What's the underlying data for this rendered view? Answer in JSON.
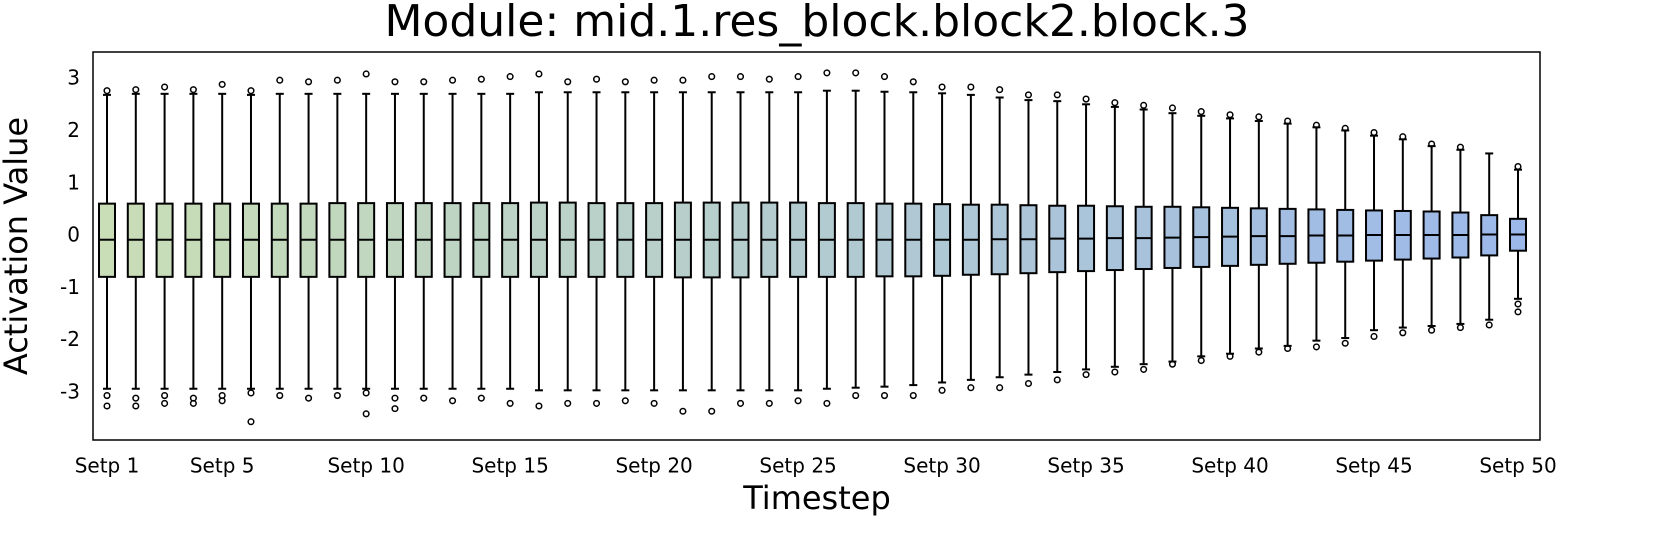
{
  "chart_data": {
    "type": "box",
    "title": "Module: mid.1.res_block.block2.block.3",
    "xlabel": "Timestep",
    "ylabel": "Activation Value",
    "categories": [
      "Setp 1",
      null,
      null,
      null,
      "Setp 5",
      null,
      null,
      null,
      null,
      "Setp 10",
      null,
      null,
      null,
      null,
      "Setp 15",
      null,
      null,
      null,
      null,
      "Setp 20",
      null,
      null,
      null,
      null,
      "Setp 25",
      null,
      null,
      null,
      null,
      "Setp 30",
      null,
      null,
      null,
      null,
      "Setp 35",
      null,
      null,
      null,
      null,
      "Setp 40",
      null,
      null,
      null,
      null,
      "Setp 45",
      null,
      null,
      null,
      null,
      "Setp 50"
    ],
    "colors": [
      "#c9deb6",
      "#9cb8ea"
    ],
    "ylim": [
      -3.9,
      3.52
    ],
    "yticks": [
      -3,
      -2,
      -1,
      0,
      1,
      2,
      3
    ],
    "grid": false,
    "boxes": [
      {
        "whislo": -2.92,
        "q1": -0.78,
        "med": -0.07,
        "q3": 0.62,
        "whishi": 2.7,
        "fliers": [
          2.78,
          -3.05,
          -3.25
        ]
      },
      {
        "whislo": -2.92,
        "q1": -0.78,
        "med": -0.07,
        "q3": 0.62,
        "whishi": 2.72,
        "fliers": [
          2.8,
          -3.1,
          -3.25
        ]
      },
      {
        "whislo": -2.92,
        "q1": -0.78,
        "med": -0.07,
        "q3": 0.62,
        "whishi": 2.72,
        "fliers": [
          2.85,
          -3.05,
          -3.2
        ]
      },
      {
        "whislo": -2.92,
        "q1": -0.78,
        "med": -0.07,
        "q3": 0.62,
        "whishi": 2.72,
        "fliers": [
          2.8,
          -3.1,
          -3.2
        ]
      },
      {
        "whislo": -2.92,
        "q1": -0.78,
        "med": -0.07,
        "q3": 0.62,
        "whishi": 2.72,
        "fliers": [
          2.9,
          -3.05,
          -3.15
        ]
      },
      {
        "whislo": -2.92,
        "q1": -0.78,
        "med": -0.07,
        "q3": 0.62,
        "whishi": 2.7,
        "fliers": [
          2.78,
          -3.0,
          -3.55
        ]
      },
      {
        "whislo": -2.92,
        "q1": -0.78,
        "med": -0.07,
        "q3": 0.62,
        "whishi": 2.72,
        "fliers": [
          2.98,
          -3.05
        ]
      },
      {
        "whislo": -2.92,
        "q1": -0.78,
        "med": -0.07,
        "q3": 0.62,
        "whishi": 2.72,
        "fliers": [
          2.95,
          -3.1
        ]
      },
      {
        "whislo": -2.92,
        "q1": -0.78,
        "med": -0.07,
        "q3": 0.63,
        "whishi": 2.72,
        "fliers": [
          2.98,
          -3.05
        ]
      },
      {
        "whislo": -2.92,
        "q1": -0.78,
        "med": -0.07,
        "q3": 0.63,
        "whishi": 2.72,
        "fliers": [
          3.1,
          -3.0,
          -3.4
        ]
      },
      {
        "whislo": -2.92,
        "q1": -0.78,
        "med": -0.07,
        "q3": 0.63,
        "whishi": 2.72,
        "fliers": [
          2.95,
          -3.1,
          -3.3
        ]
      },
      {
        "whislo": -2.92,
        "q1": -0.78,
        "med": -0.07,
        "q3": 0.63,
        "whishi": 2.72,
        "fliers": [
          2.95,
          -3.1
        ]
      },
      {
        "whislo": -2.92,
        "q1": -0.78,
        "med": -0.07,
        "q3": 0.63,
        "whishi": 2.72,
        "fliers": [
          2.98,
          -3.15
        ]
      },
      {
        "whislo": -2.92,
        "q1": -0.78,
        "med": -0.07,
        "q3": 0.63,
        "whishi": 2.72,
        "fliers": [
          3.0,
          -3.1
        ]
      },
      {
        "whislo": -2.92,
        "q1": -0.78,
        "med": -0.07,
        "q3": 0.63,
        "whishi": 2.72,
        "fliers": [
          3.05,
          -3.2
        ]
      },
      {
        "whislo": -2.95,
        "q1": -0.78,
        "med": -0.07,
        "q3": 0.64,
        "whishi": 2.75,
        "fliers": [
          3.1,
          -3.25
        ]
      },
      {
        "whislo": -2.95,
        "q1": -0.78,
        "med": -0.07,
        "q3": 0.64,
        "whishi": 2.75,
        "fliers": [
          2.95,
          -3.2
        ]
      },
      {
        "whislo": -2.95,
        "q1": -0.78,
        "med": -0.07,
        "q3": 0.63,
        "whishi": 2.75,
        "fliers": [
          3.0,
          -3.2
        ]
      },
      {
        "whislo": -2.95,
        "q1": -0.78,
        "med": -0.07,
        "q3": 0.63,
        "whishi": 2.75,
        "fliers": [
          2.95,
          -3.15
        ]
      },
      {
        "whislo": -2.95,
        "q1": -0.78,
        "med": -0.07,
        "q3": 0.63,
        "whishi": 2.75,
        "fliers": [
          2.98,
          -3.2
        ]
      },
      {
        "whislo": -2.95,
        "q1": -0.79,
        "med": -0.07,
        "q3": 0.64,
        "whishi": 2.75,
        "fliers": [
          2.98,
          -3.35
        ]
      },
      {
        "whislo": -2.95,
        "q1": -0.79,
        "med": -0.07,
        "q3": 0.64,
        "whishi": 2.75,
        "fliers": [
          3.05,
          -3.35
        ]
      },
      {
        "whislo": -2.95,
        "q1": -0.79,
        "med": -0.07,
        "q3": 0.64,
        "whishi": 2.75,
        "fliers": [
          3.05,
          -3.2
        ]
      },
      {
        "whislo": -2.95,
        "q1": -0.78,
        "med": -0.07,
        "q3": 0.64,
        "whishi": 2.75,
        "fliers": [
          3.0,
          -3.2
        ]
      },
      {
        "whislo": -2.95,
        "q1": -0.78,
        "med": -0.07,
        "q3": 0.64,
        "whishi": 2.75,
        "fliers": [
          3.05,
          -3.15
        ]
      },
      {
        "whislo": -2.92,
        "q1": -0.78,
        "med": -0.07,
        "q3": 0.63,
        "whishi": 2.78,
        "fliers": [
          3.12,
          -3.2
        ]
      },
      {
        "whislo": -2.9,
        "q1": -0.78,
        "med": -0.07,
        "q3": 0.63,
        "whishi": 2.78,
        "fliers": [
          3.12,
          -3.05
        ]
      },
      {
        "whislo": -2.88,
        "q1": -0.77,
        "med": -0.07,
        "q3": 0.62,
        "whishi": 2.76,
        "fliers": [
          3.05,
          -3.05
        ]
      },
      {
        "whislo": -2.85,
        "q1": -0.77,
        "med": -0.07,
        "q3": 0.62,
        "whishi": 2.75,
        "fliers": [
          2.95,
          -3.05
        ]
      },
      {
        "whislo": -2.8,
        "q1": -0.76,
        "med": -0.07,
        "q3": 0.61,
        "whishi": 2.73,
        "fliers": [
          2.85,
          -2.95
        ]
      },
      {
        "whislo": -2.75,
        "q1": -0.74,
        "med": -0.07,
        "q3": 0.6,
        "whishi": 2.7,
        "fliers": [
          2.85,
          -2.9
        ]
      },
      {
        "whislo": -2.7,
        "q1": -0.73,
        "med": -0.06,
        "q3": 0.6,
        "whishi": 2.65,
        "fliers": [
          2.8,
          -2.9
        ]
      },
      {
        "whislo": -2.65,
        "q1": -0.71,
        "med": -0.06,
        "q3": 0.59,
        "whishi": 2.6,
        "fliers": [
          2.7,
          -2.82
        ]
      },
      {
        "whislo": -2.6,
        "q1": -0.69,
        "med": -0.05,
        "q3": 0.58,
        "whishi": 2.58,
        "fliers": [
          2.7,
          -2.75
        ]
      },
      {
        "whislo": -2.55,
        "q1": -0.67,
        "med": -0.05,
        "q3": 0.58,
        "whishi": 2.52,
        "fliers": [
          2.62,
          -2.65
        ]
      },
      {
        "whislo": -2.5,
        "q1": -0.65,
        "med": -0.04,
        "q3": 0.57,
        "whishi": 2.47,
        "fliers": [
          2.55,
          -2.6
        ]
      },
      {
        "whislo": -2.45,
        "q1": -0.63,
        "med": -0.04,
        "q3": 0.56,
        "whishi": 2.42,
        "fliers": [
          2.5,
          -2.55
        ]
      },
      {
        "whislo": -2.4,
        "q1": -0.61,
        "med": -0.03,
        "q3": 0.56,
        "whishi": 2.35,
        "fliers": [
          2.45,
          -2.45
        ]
      },
      {
        "whislo": -2.3,
        "q1": -0.59,
        "med": -0.02,
        "q3": 0.55,
        "whishi": 2.3,
        "fliers": [
          2.38,
          -2.38
        ]
      },
      {
        "whislo": -2.25,
        "q1": -0.57,
        "med": -0.01,
        "q3": 0.54,
        "whishi": 2.25,
        "fliers": [
          2.32,
          -2.3
        ]
      },
      {
        "whislo": -2.15,
        "q1": -0.55,
        "med": 0,
        "q3": 0.53,
        "whishi": 2.2,
        "fliers": [
          2.28,
          -2.22
        ]
      },
      {
        "whislo": -2.1,
        "q1": -0.53,
        "med": 0,
        "q3": 0.52,
        "whishi": 2.15,
        "fliers": [
          2.2,
          -2.15
        ]
      },
      {
        "whislo": -2.0,
        "q1": -0.51,
        "med": 0.01,
        "q3": 0.51,
        "whishi": 2.08,
        "fliers": [
          2.12,
          -2.12
        ]
      },
      {
        "whislo": -1.95,
        "q1": -0.49,
        "med": 0.01,
        "q3": 0.5,
        "whishi": 2.02,
        "fliers": [
          2.06,
          -2.05
        ]
      },
      {
        "whislo": -1.8,
        "q1": -0.47,
        "med": 0.02,
        "q3": 0.49,
        "whishi": 1.92,
        "fliers": [
          1.98,
          -1.92
        ]
      },
      {
        "whislo": -1.75,
        "q1": -0.45,
        "med": 0.02,
        "q3": 0.48,
        "whishi": 1.85,
        "fliers": [
          1.9,
          -1.85
        ]
      },
      {
        "whislo": -1.72,
        "q1": -0.43,
        "med": 0.02,
        "q3": 0.47,
        "whishi": 1.72,
        "fliers": [
          1.76,
          -1.8
        ]
      },
      {
        "whislo": -1.68,
        "q1": -0.41,
        "med": 0.02,
        "q3": 0.45,
        "whishi": 1.65,
        "fliers": [
          1.7,
          -1.75
        ]
      },
      {
        "whislo": -1.6,
        "q1": -0.37,
        "med": 0.03,
        "q3": 0.4,
        "whishi": 1.58,
        "fliers": [
          -1.7
        ]
      },
      {
        "whislo": -1.2,
        "q1": -0.28,
        "med": 0.03,
        "q3": 0.33,
        "whishi": 1.27,
        "fliers": [
          1.33,
          -1.3,
          -1.45
        ]
      }
    ]
  }
}
